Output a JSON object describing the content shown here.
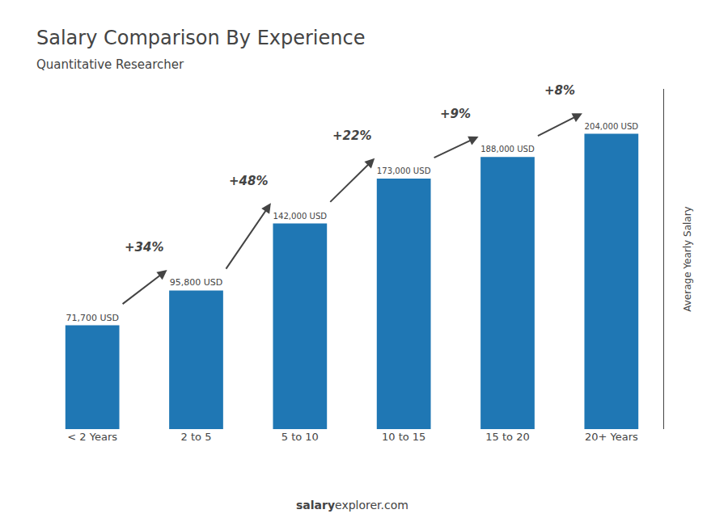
{
  "chart_data": {
    "type": "bar",
    "title": "Salary Comparison By Experience",
    "subtitle": "Quantitative Researcher",
    "ylabel": "Average Yearly Salary",
    "categories": [
      "< 2 Years",
      "2 to 5",
      "5 to 10",
      "10 to 15",
      "15 to 20",
      "20+ Years"
    ],
    "values": [
      71700,
      95800,
      142000,
      173000,
      188000,
      204000
    ],
    "value_labels": [
      "71,700 USD",
      "95,800 USD",
      "142,000 USD",
      "173,000 USD",
      "188,000 USD",
      "204,000 USD"
    ],
    "data_labels": true,
    "annotations": [
      "+34%",
      "+48%",
      "+22%",
      "+9%",
      "+8%"
    ],
    "footer": [
      "salary",
      "explorer.com"
    ],
    "ylim": [
      0,
      235000
    ],
    "grid": false,
    "tick_labels": "x"
  }
}
